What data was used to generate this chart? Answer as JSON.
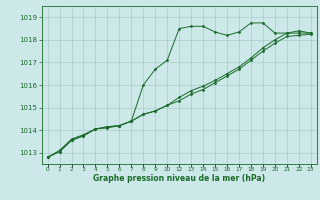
{
  "background_color": "#cce8e8",
  "grid_color": "#aacccc",
  "line_color": "#1a6b2a",
  "xlabel": "Graphe pression niveau de la mer (hPa)",
  "ylim": [
    1012.5,
    1019.5
  ],
  "yticks": [
    1013,
    1014,
    1015,
    1016,
    1017,
    1018,
    1019
  ],
  "xlabels": [
    "0",
    "1",
    "2",
    "3",
    "4",
    "5",
    "6",
    "7",
    "8",
    "9",
    "10",
    "12",
    "13",
    "14",
    "15",
    "16",
    "17",
    "18",
    "19",
    "20",
    "21",
    "22",
    "23"
  ],
  "series": [
    [
      1012.8,
      1013.1,
      1013.6,
      1013.8,
      1014.05,
      1014.1,
      1014.2,
      1014.4,
      1016.0,
      1016.7,
      1017.1,
      1018.5,
      1018.6,
      1018.6,
      1018.35,
      1018.2,
      1018.35,
      1018.75,
      1018.75,
      1018.3,
      1018.3,
      1018.4,
      1018.3
    ],
    [
      1012.8,
      1013.05,
      1013.55,
      1013.75,
      1014.05,
      1014.15,
      1014.2,
      1014.4,
      1014.7,
      1014.85,
      1015.1,
      1015.45,
      1015.75,
      1015.95,
      1016.2,
      1016.5,
      1016.8,
      1017.2,
      1017.65,
      1018.0,
      1018.3,
      1018.3,
      1018.3
    ],
    [
      1012.8,
      1013.05,
      1013.55,
      1013.75,
      1014.05,
      1014.15,
      1014.2,
      1014.4,
      1014.7,
      1014.85,
      1015.1,
      1015.3,
      1015.6,
      1015.8,
      1016.1,
      1016.4,
      1016.7,
      1017.1,
      1017.5,
      1017.85,
      1018.15,
      1018.2,
      1018.25
    ]
  ]
}
